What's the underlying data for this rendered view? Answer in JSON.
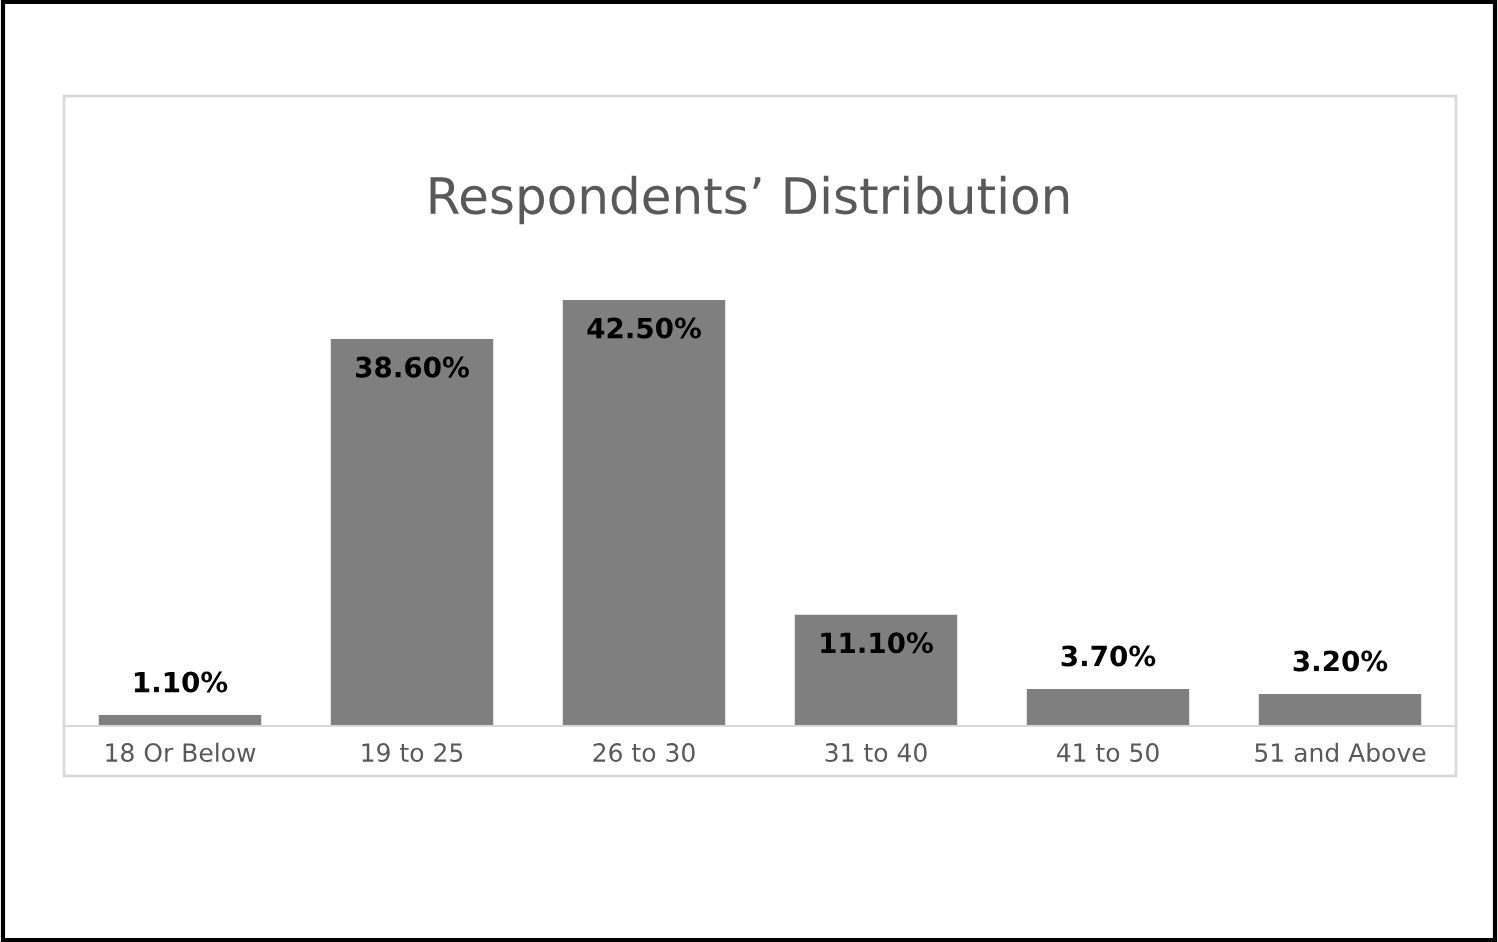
{
  "chart_data": {
    "type": "bar",
    "title": "Respondents’ Distribution",
    "categories": [
      "18 Or Below",
      "19 to 25",
      "26 to 30",
      "31 to 40",
      "41 to 50",
      "51 and Above"
    ],
    "values": [
      1.1,
      38.6,
      42.5,
      11.1,
      3.7,
      3.2
    ],
    "value_labels": [
      "1.10%",
      "38.60%",
      "42.50%",
      "11.10%",
      "3.70%",
      "3.20%"
    ],
    "color": "#7f7f7f",
    "grid": false,
    "legend": false
  }
}
